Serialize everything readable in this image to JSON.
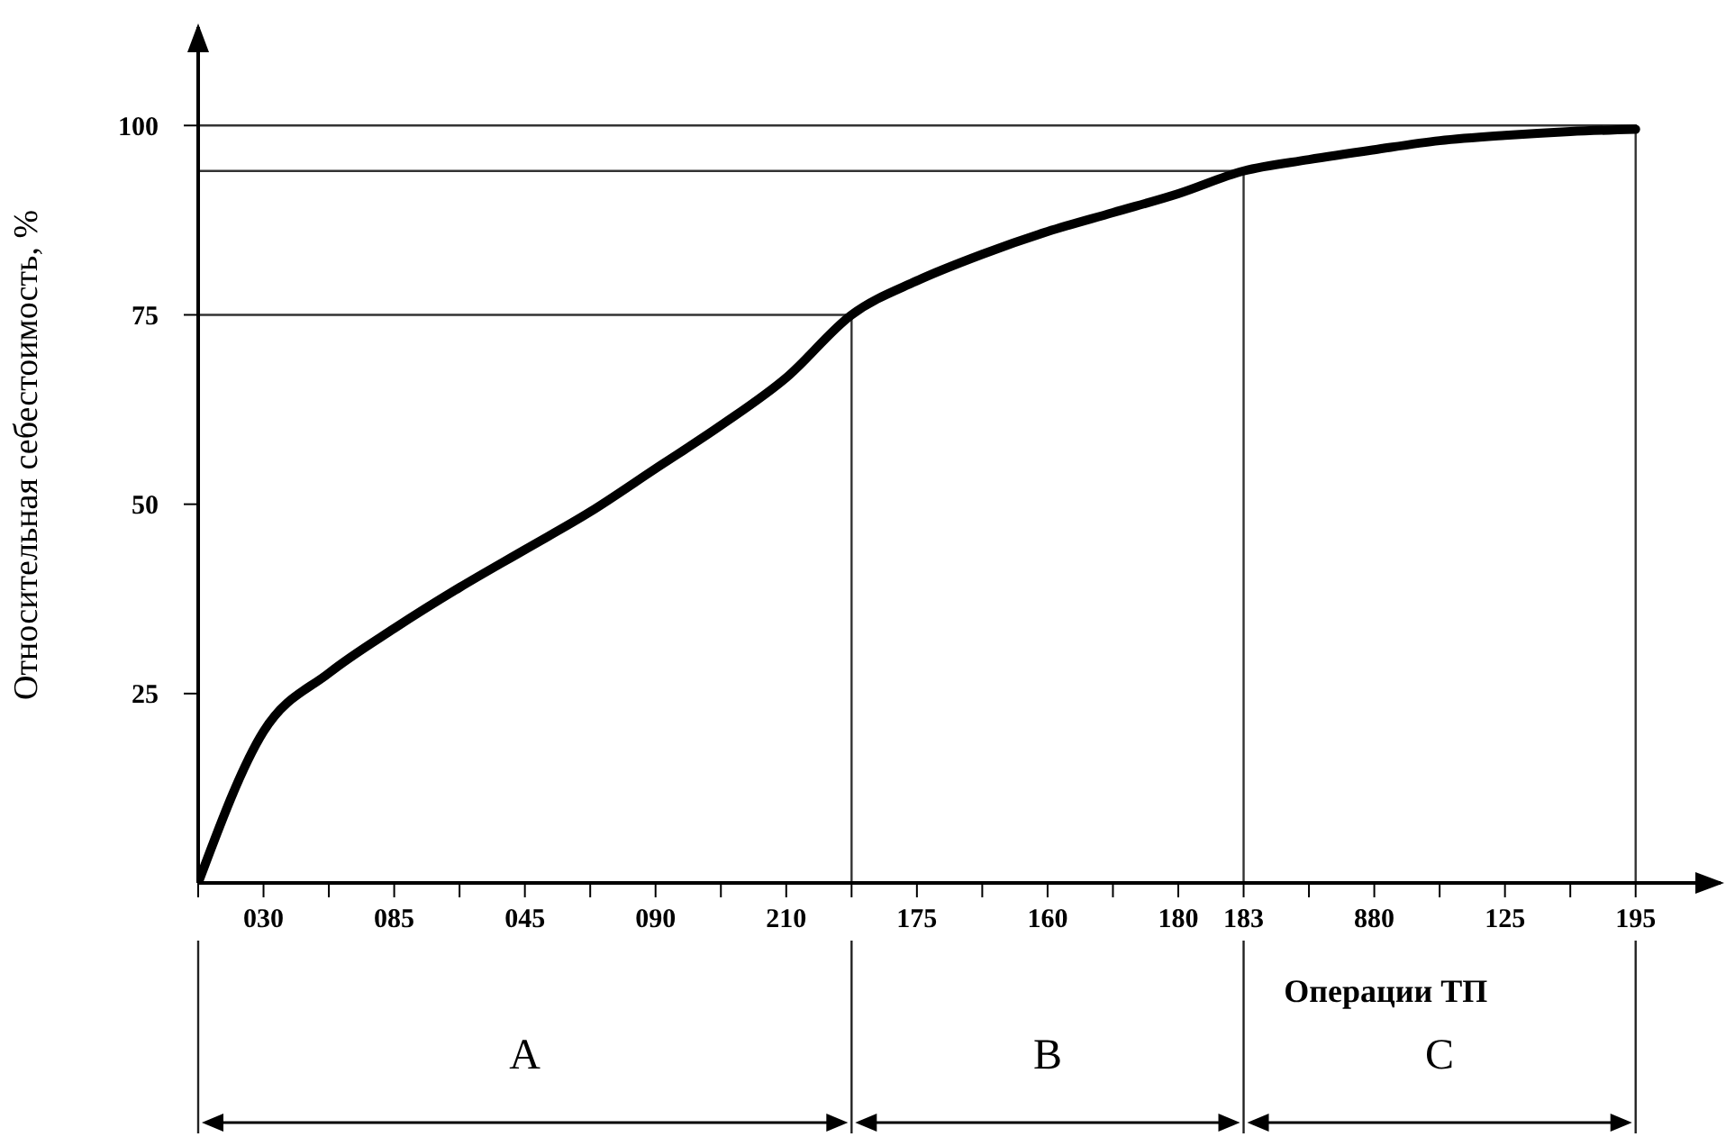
{
  "chart_data": {
    "type": "line",
    "xlabel": "Операции ТП",
    "ylabel": "Относительная себестоимость, %",
    "categories": [
      null,
      "030",
      null,
      "085",
      null,
      "045",
      null,
      "090",
      null,
      "210",
      null,
      "175",
      null,
      "160",
      null,
      "180",
      "183",
      null,
      "880",
      null,
      "125",
      null,
      "195"
    ],
    "series": [
      {
        "color": "#000000",
        "values": [
          0,
          20,
          27.7,
          33.6,
          39,
          44,
          49,
          54.7,
          60.4,
          66.7,
          75,
          79.5,
          83,
          86,
          88.5,
          91,
          94,
          95.5,
          96.8,
          98,
          98.7,
          99.2,
          99.5
        ]
      }
    ],
    "ylim": [
      0,
      113
    ],
    "yticks": [
      25,
      50,
      75,
      100
    ],
    "ref_lines": [
      {
        "axis": "y",
        "value": 75
      },
      {
        "axis": "y",
        "value": 94
      },
      {
        "axis": "y",
        "value": 100
      }
    ],
    "annotations": [
      "A",
      "B",
      "C"
    ],
    "marker": "none",
    "line_style": "solid"
  }
}
